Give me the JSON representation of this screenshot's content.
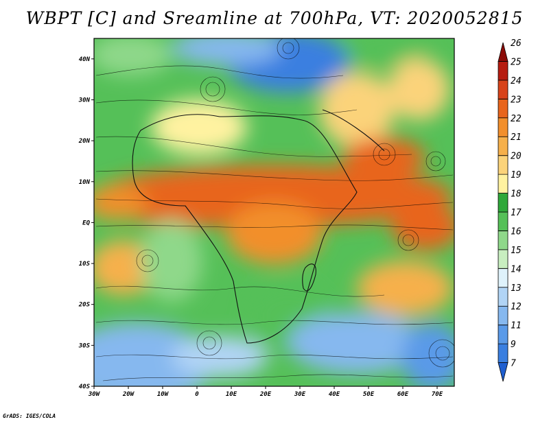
{
  "title": "WBPT [C] and Sreamline at 700hPa, VT: 2020052815",
  "credit": "GrADS: IGES/COLA",
  "map": {
    "variable": "Wet-bulb potential temperature",
    "units": "C",
    "level": "700hPa",
    "valid_time": "2020052815",
    "lon_range": [
      -30,
      75
    ],
    "lat_range": [
      -40,
      45
    ],
    "x_ticks": [
      {
        "value": -30,
        "label": "30W"
      },
      {
        "value": -20,
        "label": "20W"
      },
      {
        "value": -10,
        "label": "10W"
      },
      {
        "value": 0,
        "label": "0"
      },
      {
        "value": 10,
        "label": "10E"
      },
      {
        "value": 20,
        "label": "20E"
      },
      {
        "value": 30,
        "label": "30E"
      },
      {
        "value": 40,
        "label": "40E"
      },
      {
        "value": 50,
        "label": "50E"
      },
      {
        "value": 60,
        "label": "60E"
      },
      {
        "value": 70,
        "label": "70E"
      }
    ],
    "y_ticks": [
      {
        "value": 40,
        "label": "40N"
      },
      {
        "value": 30,
        "label": "30N"
      },
      {
        "value": 20,
        "label": "20N"
      },
      {
        "value": 10,
        "label": "10N"
      },
      {
        "value": 0,
        "label": "EQ"
      },
      {
        "value": -10,
        "label": "10S"
      },
      {
        "value": -20,
        "label": "20S"
      },
      {
        "value": -30,
        "label": "30S"
      },
      {
        "value": -40,
        "label": "40S"
      }
    ]
  },
  "colorbar": {
    "labels": [
      "7",
      "9",
      "11",
      "12",
      "13",
      "14",
      "15",
      "16",
      "17",
      "18",
      "19",
      "20",
      "21",
      "22",
      "23",
      "24",
      "25",
      "26"
    ],
    "colors": [
      "#1f5fd0",
      "#3a7fe0",
      "#5a9ae8",
      "#86b8ef",
      "#b1d4f5",
      "#dff2fb",
      "#c8eec0",
      "#8fd88a",
      "#55c058",
      "#2fa83a",
      "#fff2a0",
      "#fbd37a",
      "#f6b04b",
      "#f28f2c",
      "#e8651c",
      "#d8431a",
      "#b61c10",
      "#8c0c08"
    ]
  }
}
